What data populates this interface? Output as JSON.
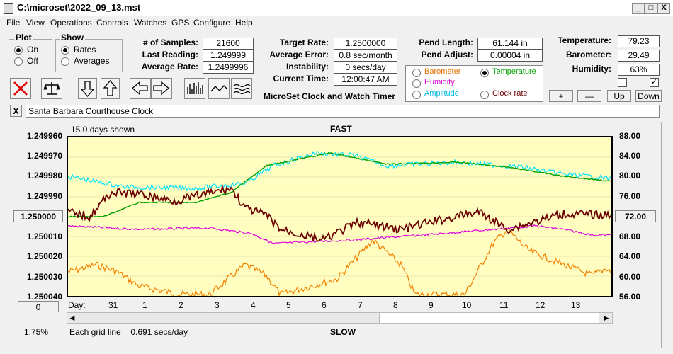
{
  "window": {
    "title": "C:\\microset\\2022_09_13.mst",
    "minimize": "_",
    "maximize": "□",
    "close": "X"
  },
  "menu": [
    "File",
    "View",
    "Operations",
    "Controls",
    "Watches",
    "GPS",
    "Configure",
    "Help"
  ],
  "plot_group": {
    "title": "Plot",
    "on": "On",
    "off": "Off",
    "selected": "On"
  },
  "show_group": {
    "title": "Show",
    "rates": "Rates",
    "averages": "Averages",
    "selected": "Rates"
  },
  "stats": {
    "samples_label": "# of Samples:",
    "samples": "21600",
    "last_label": "Last Reading:",
    "last": "1.249999",
    "avg_label": "Average Rate:",
    "avg": "1.2499996",
    "target_label": "Target Rate:",
    "target": "1.2500000",
    "err_label": "Average Error:",
    "err": "0.8 sec/month",
    "inst_label": "Instability:",
    "inst": "0 secs/day",
    "time_label": "Current Time:",
    "time": "12:00:47 AM",
    "pend_len_label": "Pend Length:",
    "pend_len": "61.144 in",
    "pend_adj_label": "Pend Adjust:",
    "pend_adj": "0.00004 in",
    "temp_label": "Temperature:",
    "temp": "79.23",
    "baro_label": "Barometer:",
    "baro": "29.49",
    "hum_label": "Humidity:",
    "hum": "63%"
  },
  "app_subtitle": "MicroSet Clock and Watch Timer",
  "sensors": {
    "barometer": "Barometer",
    "temperature": "Temperature",
    "humidity": "Humidity",
    "amplitude": "Amplitude",
    "clock_rate": "Clock rate",
    "selected": "Temperature"
  },
  "scale_buttons": {
    "plus": "+",
    "minus": "—",
    "up": "Up",
    "down": "Down"
  },
  "clock_name": "Santa Barbara Courthouse Clock",
  "close_x": "X",
  "graph": {
    "days_shown": "15.0 days shown",
    "fast": "FAST",
    "slow": "SLOW",
    "y_left": [
      "1.249960",
      "1.249970",
      "1.249980",
      "1.249990",
      "1.250000",
      "1.250010",
      "1.250020",
      "1.250030",
      "1.250040"
    ],
    "center_button": "1.250000",
    "y_right": [
      "88.00",
      "84.00",
      "80.00",
      "76.00",
      "72.00",
      "68.00",
      "64.00",
      "60.00",
      "56.00"
    ],
    "day_prefix": "Day:",
    "days": [
      "31",
      "1",
      "2",
      "3",
      "4",
      "5",
      "6",
      "7",
      "8",
      "9",
      "10",
      "11",
      "12",
      "13"
    ],
    "zero_button": "0",
    "percent": "1.75%",
    "grid_note": "Each grid line = 0.691 secs/day",
    "colors": {
      "rate": "#6b0000",
      "temperature": "#00a000",
      "barometer": "#f08000",
      "humidity": "#e000e0",
      "amplitude": "#00e0ff"
    }
  }
}
